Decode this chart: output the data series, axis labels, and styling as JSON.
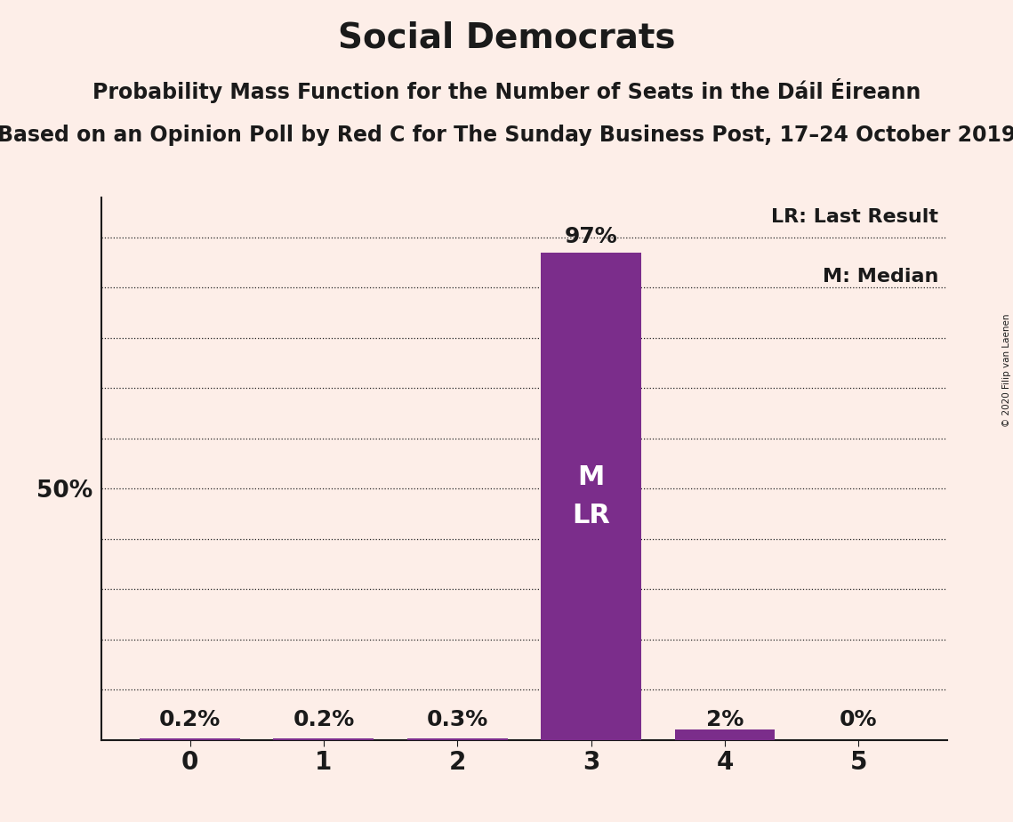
{
  "title": "Social Democrats",
  "subtitle1": "Probability Mass Function for the Number of Seats in the Dáil Éireann",
  "subtitle2": "Based on an Opinion Poll by Red C for The Sunday Business Post, 17–24 October 2019",
  "copyright": "© 2020 Filip van Laenen",
  "categories": [
    0,
    1,
    2,
    3,
    4,
    5
  ],
  "values": [
    0.002,
    0.002,
    0.003,
    0.97,
    0.02,
    0.0
  ],
  "bar_labels": [
    "0.2%",
    "0.2%",
    "0.3%",
    "97%",
    "2%",
    "0%"
  ],
  "bar_color": "#7b2d8b",
  "background_color": "#fdeee8",
  "text_color": "#1a1a1a",
  "legend_lr": "LR: Last Result",
  "legend_m": "M: Median",
  "bar_text_inside": "M\nLR",
  "ytick_label": "50%",
  "ytick_value": 0.5,
  "ylim": [
    0,
    1.08
  ],
  "grid_color": "#222222",
  "title_fontsize": 28,
  "subtitle1_fontsize": 17,
  "subtitle2_fontsize": 17,
  "bar_label_fontsize": 18,
  "inside_label_fontsize": 22,
  "legend_fontsize": 16,
  "ytick_fontsize": 19,
  "xtick_fontsize": 20,
  "bar_width": 0.75
}
